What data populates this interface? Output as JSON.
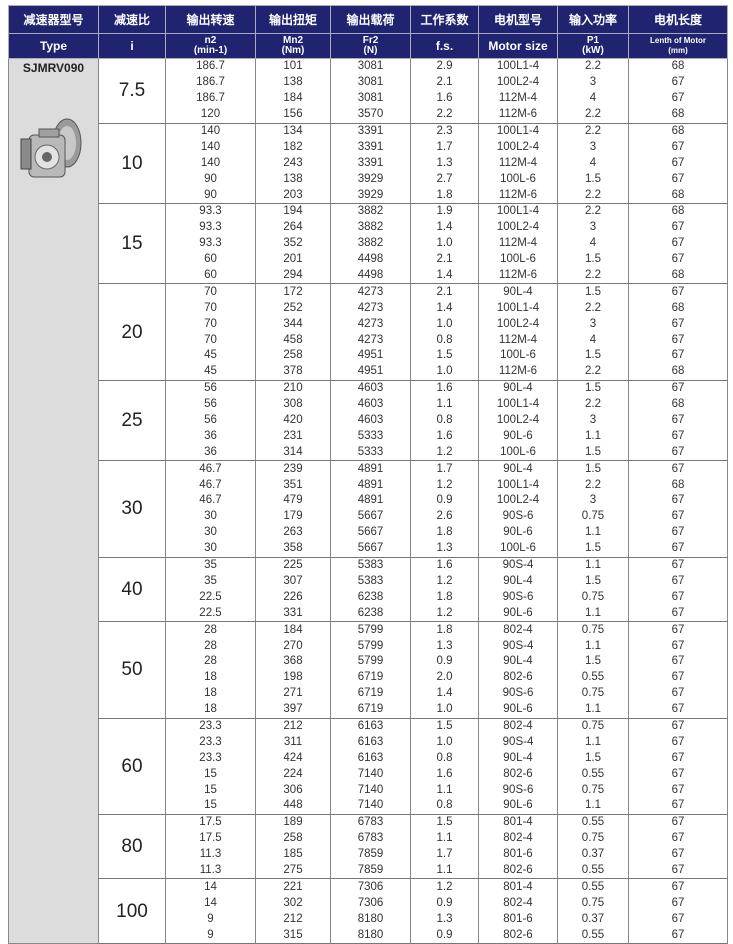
{
  "header_cn": [
    "减速器型号",
    "减速比",
    "输出转速",
    "输出扭矩",
    "输出载荷",
    "工作系数",
    "电机型号",
    "输入功率",
    "电机长度"
  ],
  "header_en": [
    {
      "top": "Type",
      "bottom": ""
    },
    {
      "top": "i",
      "bottom": ""
    },
    {
      "top": "n2",
      "bottom": "(min-1)"
    },
    {
      "top": "Mn2",
      "bottom": "(Nm)"
    },
    {
      "top": "Fr2",
      "bottom": "(N)"
    },
    {
      "top": "f.s.",
      "bottom": ""
    },
    {
      "top": "Motor size",
      "bottom": ""
    },
    {
      "top": "P1",
      "bottom": "(kW)"
    },
    {
      "top": "Lenth of Motor",
      "bottom": "(mm)"
    }
  ],
  "type": "SJMRV090",
  "product_image": "worm-gearbox-photo",
  "colors": {
    "header_bg": "#1f2370",
    "type_col_bg": "#dcdcdc"
  },
  "groups": [
    {
      "ratio": "7.5",
      "rows": [
        [
          "186.7",
          "101",
          "3081",
          "2.9",
          "100L1-4",
          "2.2",
          "68"
        ],
        [
          "186.7",
          "138",
          "3081",
          "2.1",
          "100L2-4",
          "3",
          "67"
        ],
        [
          "186.7",
          "184",
          "3081",
          "1.6",
          "112M-4",
          "4",
          "67"
        ],
        [
          "120",
          "156",
          "3570",
          "2.2",
          "112M-6",
          "2.2",
          "68"
        ]
      ]
    },
    {
      "ratio": "10",
      "rows": [
        [
          "140",
          "134",
          "3391",
          "2.3",
          "100L1-4",
          "2.2",
          "68"
        ],
        [
          "140",
          "182",
          "3391",
          "1.7",
          "100L2-4",
          "3",
          "67"
        ],
        [
          "140",
          "243",
          "3391",
          "1.3",
          "112M-4",
          "4",
          "67"
        ],
        [
          "90",
          "138",
          "3929",
          "2.7",
          "100L-6",
          "1.5",
          "67"
        ],
        [
          "90",
          "203",
          "3929",
          "1.8",
          "112M-6",
          "2.2",
          "68"
        ]
      ]
    },
    {
      "ratio": "15",
      "rows": [
        [
          "93.3",
          "194",
          "3882",
          "1.9",
          "100L1-4",
          "2.2",
          "68"
        ],
        [
          "93.3",
          "264",
          "3882",
          "1.4",
          "100L2-4",
          "3",
          "67"
        ],
        [
          "93.3",
          "352",
          "3882",
          "1.0",
          "112M-4",
          "4",
          "67"
        ],
        [
          "60",
          "201",
          "4498",
          "2.1",
          "100L-6",
          "1.5",
          "67"
        ],
        [
          "60",
          "294",
          "4498",
          "1.4",
          "112M-6",
          "2.2",
          "68"
        ]
      ]
    },
    {
      "ratio": "20",
      "rows": [
        [
          "70",
          "172",
          "4273",
          "2.1",
          "90L-4",
          "1.5",
          "67"
        ],
        [
          "70",
          "252",
          "4273",
          "1.4",
          "100L1-4",
          "2.2",
          "68"
        ],
        [
          "70",
          "344",
          "4273",
          "1.0",
          "100L2-4",
          "3",
          "67"
        ],
        [
          "70",
          "458",
          "4273",
          "0.8",
          "112M-4",
          "4",
          "67"
        ],
        [
          "45",
          "258",
          "4951",
          "1.5",
          "100L-6",
          "1.5",
          "67"
        ],
        [
          "45",
          "378",
          "4951",
          "1.0",
          "112M-6",
          "2.2",
          "68"
        ]
      ]
    },
    {
      "ratio": "25",
      "rows": [
        [
          "56",
          "210",
          "4603",
          "1.6",
          "90L-4",
          "1.5",
          "67"
        ],
        [
          "56",
          "308",
          "4603",
          "1.1",
          "100L1-4",
          "2.2",
          "68"
        ],
        [
          "56",
          "420",
          "4603",
          "0.8",
          "100L2-4",
          "3",
          "67"
        ],
        [
          "36",
          "231",
          "5333",
          "1.6",
          "90L-6",
          "1.1",
          "67"
        ],
        [
          "36",
          "314",
          "5333",
          "1.2",
          "100L-6",
          "1.5",
          "67"
        ]
      ]
    },
    {
      "ratio": "30",
      "rows": [
        [
          "46.7",
          "239",
          "4891",
          "1.7",
          "90L-4",
          "1.5",
          "67"
        ],
        [
          "46.7",
          "351",
          "4891",
          "1.2",
          "100L1-4",
          "2.2",
          "68"
        ],
        [
          "46.7",
          "479",
          "4891",
          "0.9",
          "100L2-4",
          "3",
          "67"
        ],
        [
          "30",
          "179",
          "5667",
          "2.6",
          "90S-6",
          "0.75",
          "67"
        ],
        [
          "30",
          "263",
          "5667",
          "1.8",
          "90L-6",
          "1.1",
          "67"
        ],
        [
          "30",
          "358",
          "5667",
          "1.3",
          "100L-6",
          "1.5",
          "67"
        ]
      ]
    },
    {
      "ratio": "40",
      "rows": [
        [
          "35",
          "225",
          "5383",
          "1.6",
          "90S-4",
          "1.1",
          "67"
        ],
        [
          "35",
          "307",
          "5383",
          "1.2",
          "90L-4",
          "1.5",
          "67"
        ],
        [
          "22.5",
          "226",
          "6238",
          "1.8",
          "90S-6",
          "0.75",
          "67"
        ],
        [
          "22.5",
          "331",
          "6238",
          "1.2",
          "90L-6",
          "1.1",
          "67"
        ]
      ]
    },
    {
      "ratio": "50",
      "rows": [
        [
          "28",
          "184",
          "5799",
          "1.8",
          "802-4",
          "0.75",
          "67"
        ],
        [
          "28",
          "270",
          "5799",
          "1.3",
          "90S-4",
          "1.1",
          "67"
        ],
        [
          "28",
          "368",
          "5799",
          "0.9",
          "90L-4",
          "1.5",
          "67"
        ],
        [
          "18",
          "198",
          "6719",
          "2.0",
          "802-6",
          "0.55",
          "67"
        ],
        [
          "18",
          "271",
          "6719",
          "1.4",
          "90S-6",
          "0.75",
          "67"
        ],
        [
          "18",
          "397",
          "6719",
          "1.0",
          "90L-6",
          "1.1",
          "67"
        ]
      ]
    },
    {
      "ratio": "60",
      "rows": [
        [
          "23.3",
          "212",
          "6163",
          "1.5",
          "802-4",
          "0.75",
          "67"
        ],
        [
          "23.3",
          "311",
          "6163",
          "1.0",
          "90S-4",
          "1.1",
          "67"
        ],
        [
          "23.3",
          "424",
          "6163",
          "0.8",
          "90L-4",
          "1.5",
          "67"
        ],
        [
          "15",
          "224",
          "7140",
          "1.6",
          "802-6",
          "0.55",
          "67"
        ],
        [
          "15",
          "306",
          "7140",
          "1.1",
          "90S-6",
          "0.75",
          "67"
        ],
        [
          "15",
          "448",
          "7140",
          "0.8",
          "90L-6",
          "1.1",
          "67"
        ]
      ]
    },
    {
      "ratio": "80",
      "rows": [
        [
          "17.5",
          "189",
          "6783",
          "1.5",
          "801-4",
          "0.55",
          "67"
        ],
        [
          "17.5",
          "258",
          "6783",
          "1.1",
          "802-4",
          "0.75",
          "67"
        ],
        [
          "11.3",
          "185",
          "7859",
          "1.7",
          "801-6",
          "0.37",
          "67"
        ],
        [
          "11.3",
          "275",
          "7859",
          "1.1",
          "802-6",
          "0.55",
          "67"
        ]
      ]
    },
    {
      "ratio": "100",
      "rows": [
        [
          "14",
          "221",
          "7306",
          "1.2",
          "801-4",
          "0.55",
          "67"
        ],
        [
          "14",
          "302",
          "7306",
          "0.9",
          "802-4",
          "0.75",
          "67"
        ],
        [
          "9",
          "212",
          "8180",
          "1.3",
          "801-6",
          "0.37",
          "67"
        ],
        [
          "9",
          "315",
          "8180",
          "0.9",
          "802-6",
          "0.55",
          "67"
        ]
      ]
    }
  ]
}
